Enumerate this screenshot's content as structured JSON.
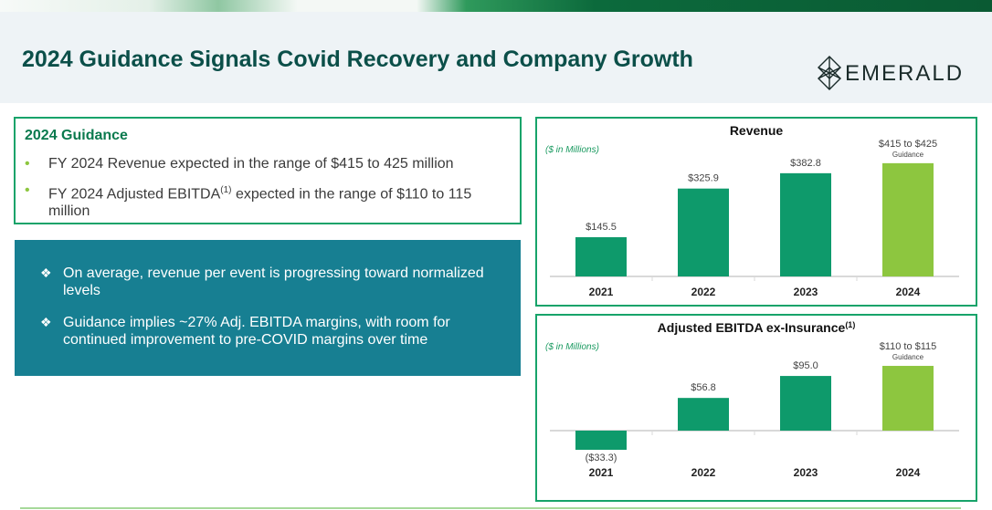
{
  "page": {
    "title": "2024 Guidance Signals Covid Recovery and Company Growth",
    "logo_text": "EMERALD"
  },
  "guidance": {
    "title": "2024 Guidance",
    "bullet1": "FY 2024 Revenue expected in the range of $415 to 425 million",
    "bullet2_pre": "FY 2024 Adjusted EBITDA",
    "bullet2_sup": "(1)",
    "bullet2_post": " expected in the range of $110 to 115",
    "bullet2_line2": "million",
    "bullet_marker": "•"
  },
  "highlights": {
    "marker": "❖",
    "item1": "On average, revenue per event is progressing toward normalized levels",
    "item2": "Guidance implies ~27% Adj. EBITDA margins, with room for continued improvement to pre-COVID margins over time"
  },
  "colors": {
    "brand_teal": "#0b4f49",
    "bar_actual": "#0e9a6b",
    "bar_guidance": "#8dc63f",
    "border_green": "#17a36a",
    "highlight_box": "#177f92"
  },
  "chart_data": [
    {
      "type": "bar",
      "title": "Revenue",
      "units_note": "($ in Millions)",
      "categories": [
        "2021",
        "2022",
        "2023",
        "2024"
      ],
      "values": [
        145.5,
        325.9,
        382.8,
        420
      ],
      "labels": [
        "$145.5",
        "$325.9",
        "$382.8",
        "$415 to $425"
      ],
      "sublabels": [
        "",
        "",
        "",
        "Guidance"
      ],
      "guidance_range": [
        415,
        425
      ],
      "ylim": [
        0,
        450
      ]
    },
    {
      "type": "bar",
      "title": "Adjusted EBITDA ex-Insurance",
      "title_sup": "(1)",
      "units_note": "($ in Millions)",
      "categories": [
        "2021",
        "2022",
        "2023",
        "2024"
      ],
      "values": [
        -33.3,
        56.8,
        95.0,
        112.5
      ],
      "labels": [
        "($33.3)",
        "$56.8",
        "$95.0",
        "$110 to $115"
      ],
      "sublabels": [
        "",
        "",
        "",
        "Guidance"
      ],
      "guidance_range": [
        110,
        115
      ],
      "ylim": [
        -40,
        130
      ]
    }
  ]
}
